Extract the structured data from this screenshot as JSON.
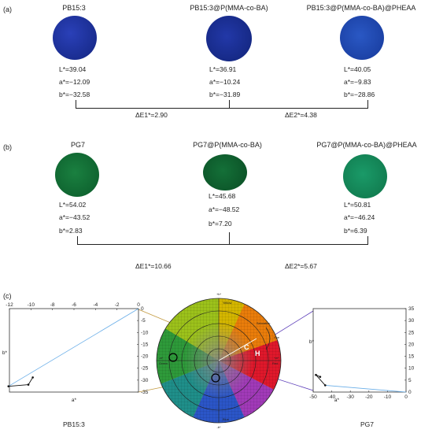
{
  "panel_a": {
    "label": "(a)",
    "samples": [
      {
        "name": "PB15:3",
        "L": "L*=39.04",
        "a": "a*=−12.09",
        "b": "b*=−32.58",
        "color": "#1a2f9a"
      },
      {
        "name": "PB15:3@P(MMA-co-BA)",
        "L": "L*=36.91",
        "a": "a*=−10.24",
        "b": "b*=−31.89",
        "color": "#172a8c"
      },
      {
        "name": "PB15:3@P(MMA-co-BA)@PHEAA",
        "L": "L*=40.05",
        "a": "a*=−9.83",
        "b": "b*=−28.86",
        "color": "#1e47b0"
      }
    ],
    "delta1": "ΔE1*=2.90",
    "delta2": "ΔE2*=4.38"
  },
  "panel_b": {
    "label": "(b)",
    "samples": [
      {
        "name": "PG7",
        "L": "L*=54.02",
        "a": "a*=−43.52",
        "b": "b*=2.83",
        "color": "#0f6b32"
      },
      {
        "name": "PG7@P(MMA-co-BA)",
        "L": "L*=45.68",
        "a": "a*=−48.52",
        "b": "b*=7.20",
        "color": "#0c5a2a"
      },
      {
        "name": "PG7@P(MMA-co-BA)@PHEAA",
        "L": "L*=50.81",
        "a": "a*=−46.24",
        "b": "b*=6.39",
        "color": "#11855a"
      }
    ],
    "delta1": "ΔE1*=10.66",
    "delta2": "ΔE2*=5.67"
  },
  "panel_c": {
    "label": "(c)",
    "left_plot": {
      "caption": "PB15:3",
      "xlabel": "a*",
      "ylabel": "b*",
      "xticks": [
        "-12",
        "-10",
        "-8",
        "-6",
        "-4",
        "-2",
        "0"
      ],
      "yticks": [
        "0",
        "-5",
        "-10",
        "-15",
        "-20",
        "-25",
        "-30",
        "-35"
      ]
    },
    "right_plot": {
      "caption": "PG7",
      "xlabel": "a*",
      "ylabel": "b*",
      "xticks": [
        "-50",
        "-40",
        "-30",
        "-20",
        "-10",
        "0"
      ],
      "yticks": [
        "35",
        "30",
        "25",
        "20",
        "15",
        "10",
        "5",
        "0"
      ]
    },
    "wheel": {
      "yellow": "Yellow",
      "green": "Green",
      "red": "Red",
      "blue": "Blue",
      "top": "+b*",
      "left": "-a*",
      "right": "+a*",
      "bottom": "-b*",
      "c_label": "C",
      "h_label": "H",
      "saturation": "Saturation",
      "hue": "Hue"
    }
  },
  "chart_data": [
    {
      "type": "scatter",
      "title": "PB15:3",
      "xlabel": "a*",
      "ylabel": "b*",
      "xlim": [
        -12,
        0
      ],
      "ylim": [
        -35,
        0
      ],
      "x": [
        -12.09,
        -10.24,
        -9.83
      ],
      "y": [
        -32.58,
        -31.89,
        -28.86
      ]
    },
    {
      "type": "scatter",
      "title": "PG7",
      "xlabel": "a*",
      "ylabel": "b*",
      "xlim": [
        -50,
        0
      ],
      "ylim": [
        0,
        35
      ],
      "x": [
        -43.52,
        -48.52,
        -46.24
      ],
      "y": [
        2.83,
        7.2,
        6.39
      ]
    }
  ]
}
